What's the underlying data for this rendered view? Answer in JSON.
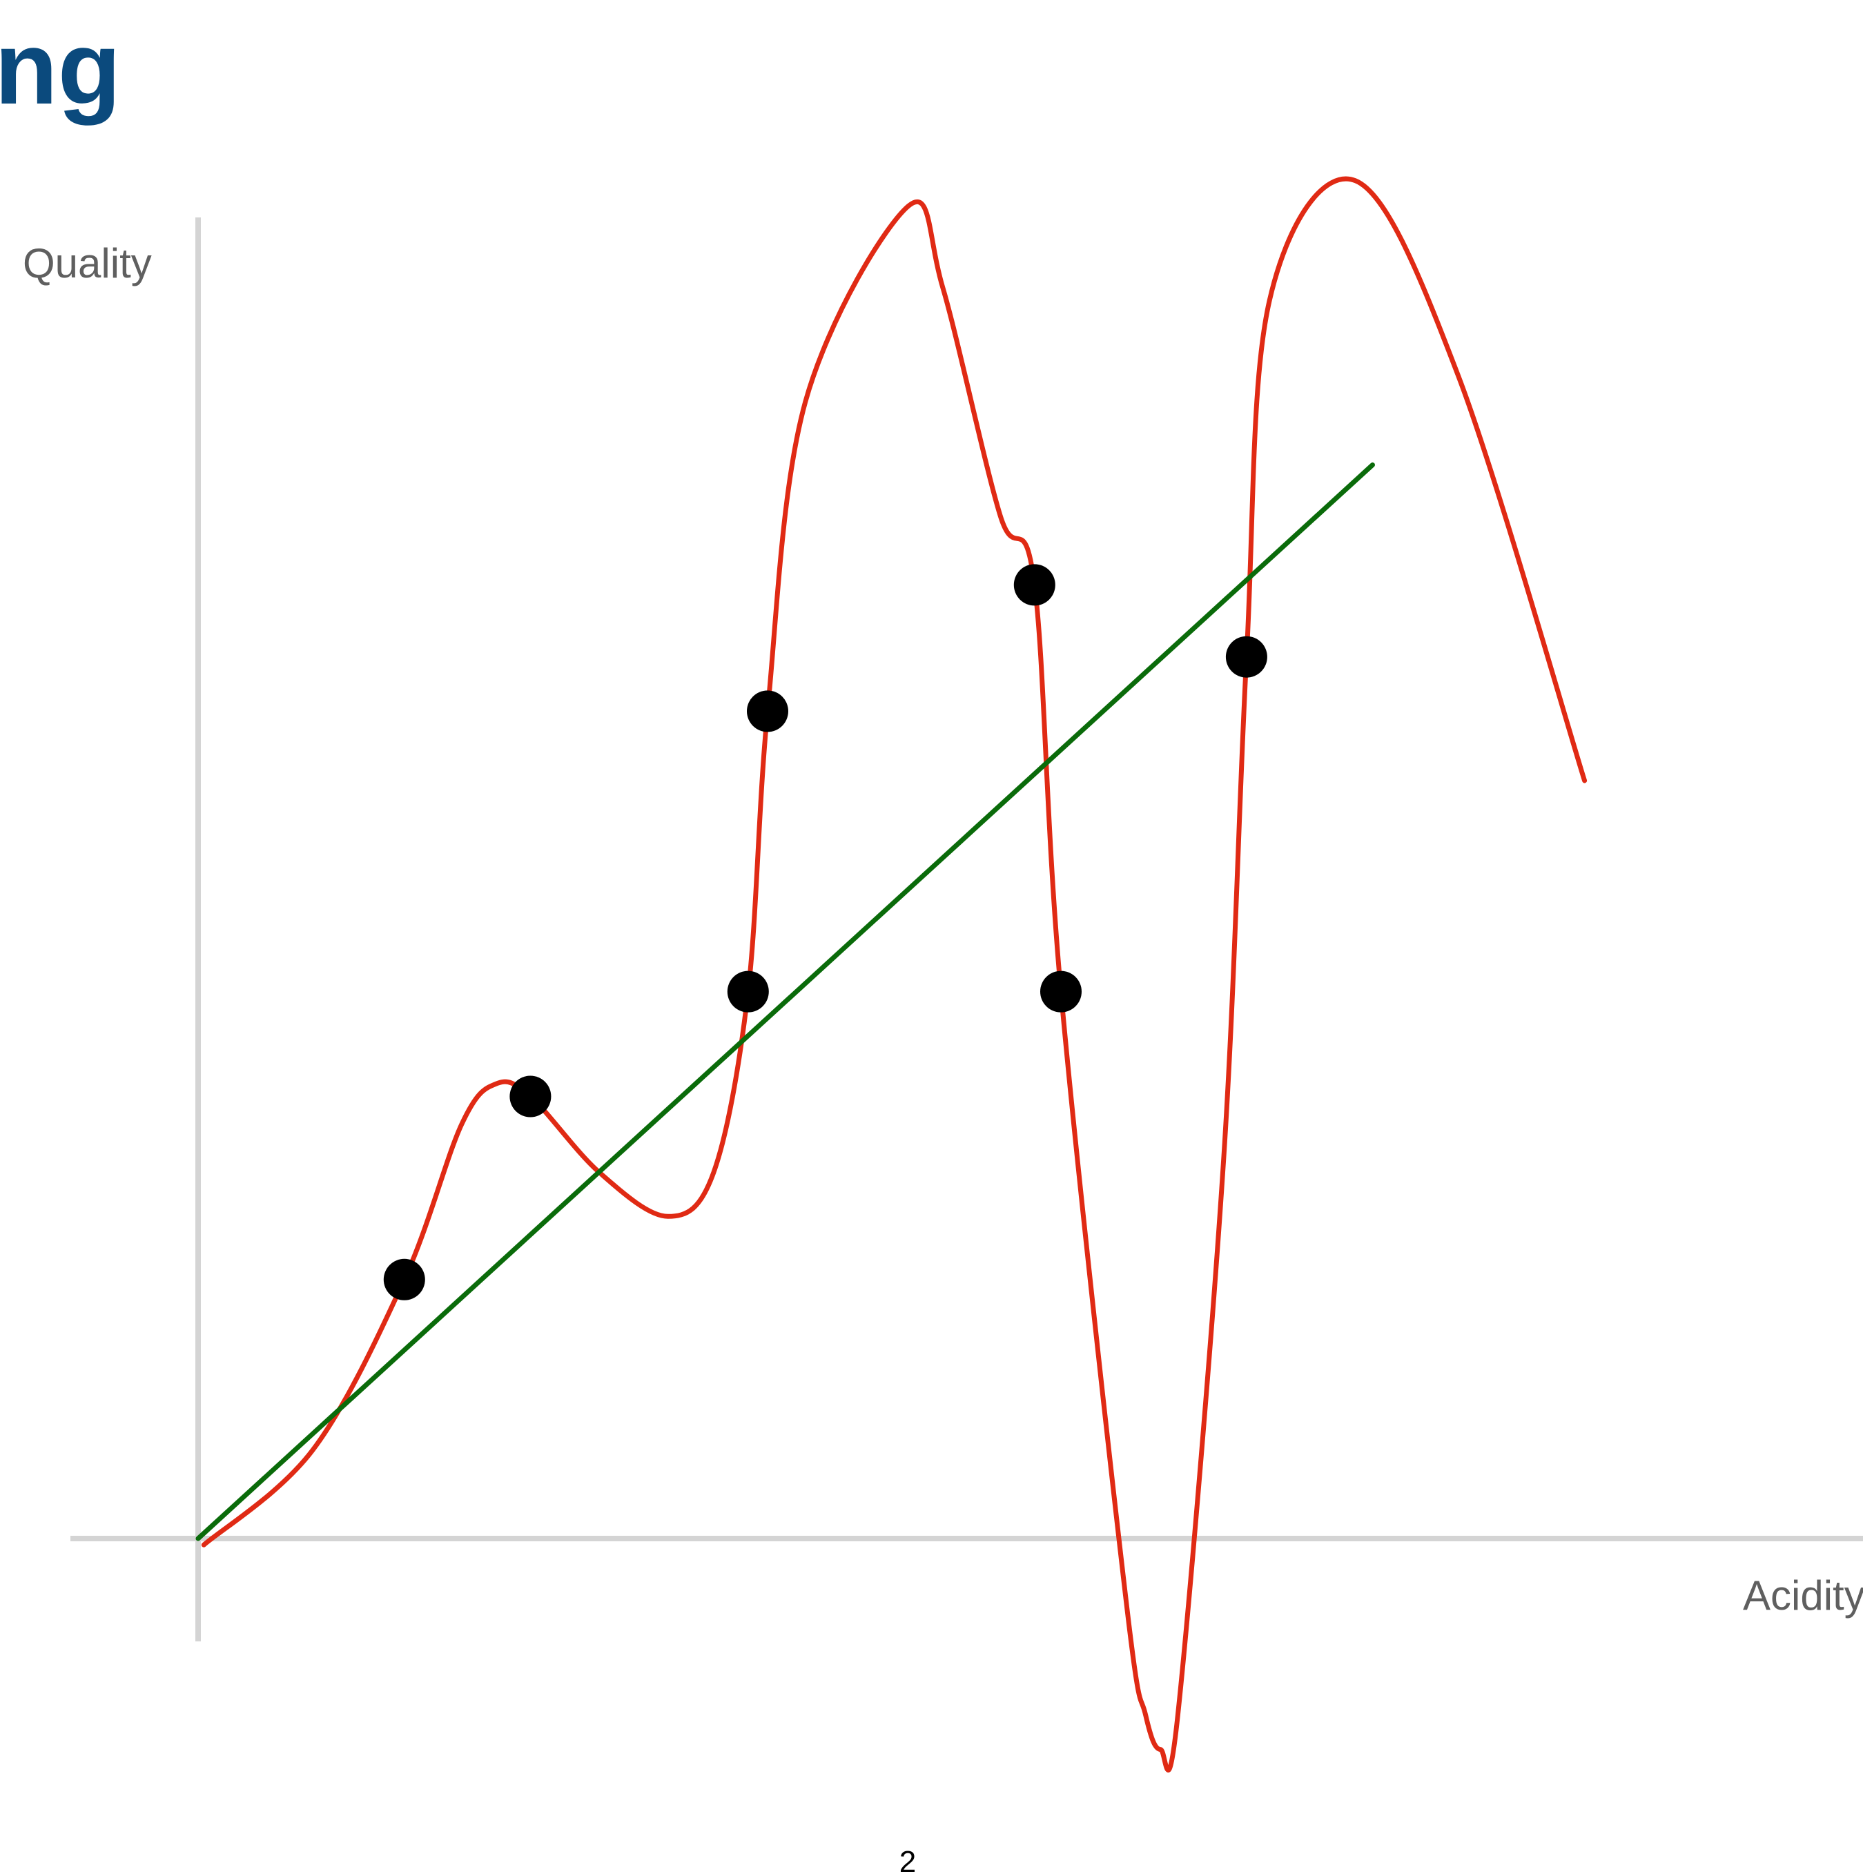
{
  "slide": {
    "title_fragment": "ng",
    "page_number": "2",
    "title_color": "#0b4a7d"
  },
  "chart_data": {
    "type": "scatter",
    "xlabel": "Acidity",
    "ylabel": "Quality",
    "grid": false,
    "axis_color": "#d4d4d4",
    "point_color": "#000000",
    "points": [
      {
        "x": 1.8,
        "y": 2.05
      },
      {
        "x": 2.9,
        "y": 3.5
      },
      {
        "x": 4.8,
        "y": 4.33
      },
      {
        "x": 4.97,
        "y": 6.55
      },
      {
        "x": 7.3,
        "y": 7.55
      },
      {
        "x": 7.53,
        "y": 4.33
      },
      {
        "x": 9.15,
        "y": 6.98
      }
    ],
    "series": [
      {
        "kind": "overfit-curve",
        "color": "#e02a14",
        "x": [
          0.05,
          1.0,
          1.8,
          2.3,
          2.6,
          2.9,
          3.5,
          4.1,
          4.5,
          4.8,
          4.97,
          5.3,
          6.2,
          6.5,
          7.0,
          7.3,
          7.53,
          8.1,
          8.27,
          8.4,
          8.55,
          8.95,
          9.15,
          9.35,
          10.1,
          11.0,
          12.1
        ],
        "y": [
          -0.05,
          0.7,
          2.05,
          3.28,
          3.6,
          3.5,
          2.9,
          2.55,
          2.9,
          4.33,
          6.55,
          9.0,
          10.55,
          9.9,
          8.1,
          7.55,
          4.33,
          -0.5,
          -1.4,
          -1.67,
          -1.4,
          3.0,
          6.98,
          9.8,
          10.75,
          9.2,
          6.0
        ]
      },
      {
        "kind": "linear-fit",
        "color": "#0a6b0a",
        "x": [
          0,
          10.25
        ],
        "y": [
          0,
          8.5
        ]
      }
    ]
  }
}
